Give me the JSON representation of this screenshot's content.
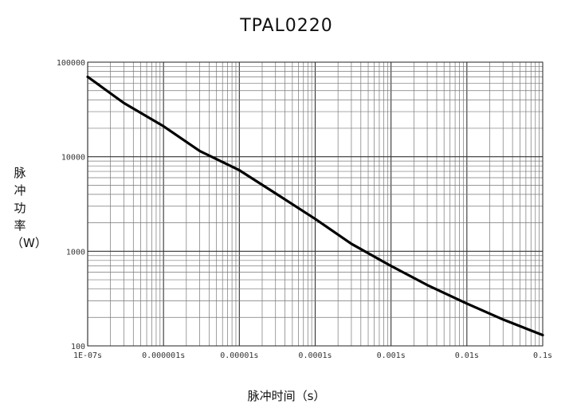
{
  "chart_data": {
    "type": "line",
    "title": "TPAL0220",
    "xlabel": "脉冲时间（s）",
    "ylabel": "脉冲功率（W）",
    "x_scale": "log",
    "y_scale": "log",
    "xlim": [
      1e-07,
      0.1
    ],
    "ylim": [
      100,
      100000
    ],
    "grid": true,
    "x_ticks": [
      {
        "value": 1e-07,
        "label": "1E-07s"
      },
      {
        "value": 1e-06,
        "label": "0.000001s"
      },
      {
        "value": 1e-05,
        "label": "0.00001s"
      },
      {
        "value": 0.0001,
        "label": "0.0001s"
      },
      {
        "value": 0.001,
        "label": "0.001s"
      },
      {
        "value": 0.01,
        "label": "0.01s"
      },
      {
        "value": 0.1,
        "label": "0.1s"
      }
    ],
    "y_ticks": [
      {
        "value": 100,
        "label": "100"
      },
      {
        "value": 1000,
        "label": "1000"
      },
      {
        "value": 10000,
        "label": "10000"
      },
      {
        "value": 100000,
        "label": "100000"
      }
    ],
    "series": [
      {
        "color": "#000000",
        "x": [
          1e-07,
          3e-07,
          1e-06,
          3e-06,
          1e-05,
          3e-05,
          0.0001,
          0.0003,
          0.001,
          0.003,
          0.01,
          0.03,
          0.1
        ],
        "y": [
          70000,
          37000,
          21000,
          11500,
          7200,
          4100,
          2200,
          1200,
          700,
          440,
          280,
          190,
          130
        ]
      }
    ]
  }
}
